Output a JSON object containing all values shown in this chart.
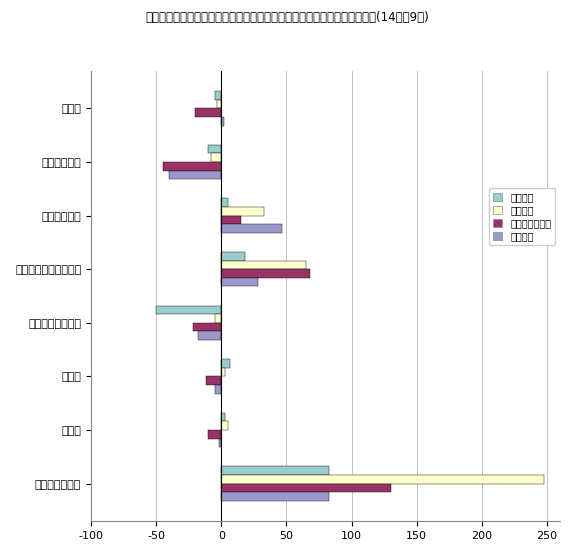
{
  "title": "図－１９　業態別事業所数、従業者数、年間商品販売額、売場面積増減率(14年／9年)",
  "categories": [
    "百貨店",
    "総合スーパー",
    "専門スーパー",
    "コンビニエンスストア",
    "その他のスーパー",
    "専門店",
    "中心店",
    "その他の小売店"
  ],
  "series": {
    "事業所数": [
      -5,
      -10,
      5,
      18,
      -50,
      7,
      3,
      83
    ],
    "従業者数": [
      -3,
      -8,
      33,
      65,
      -5,
      3,
      5,
      248
    ],
    "年間商品販売額": [
      -20,
      -45,
      15,
      68,
      -22,
      -12,
      -10,
      130
    ],
    "売場面積": [
      2,
      -40,
      47,
      28,
      -18,
      -5,
      -2,
      83
    ]
  },
  "colors": {
    "事業所数": "#99CCCC",
    "従業者数": "#FFFFCC",
    "年間商品販売額": "#993366",
    "売場面積": "#9999CC"
  },
  "xlim": [
    -100,
    260
  ],
  "xticks": [
    -100,
    -50,
    0,
    50,
    100,
    150,
    200,
    250
  ],
  "legend_labels": [
    "事業所数",
    "従業者数",
    "年間商品販売額",
    "売場面積"
  ],
  "bar_height": 0.16,
  "figsize": [
    5.75,
    5.56
  ],
  "dpi": 100,
  "grid_color": "#AAAAAA",
  "background_color": "#FFFFFF"
}
